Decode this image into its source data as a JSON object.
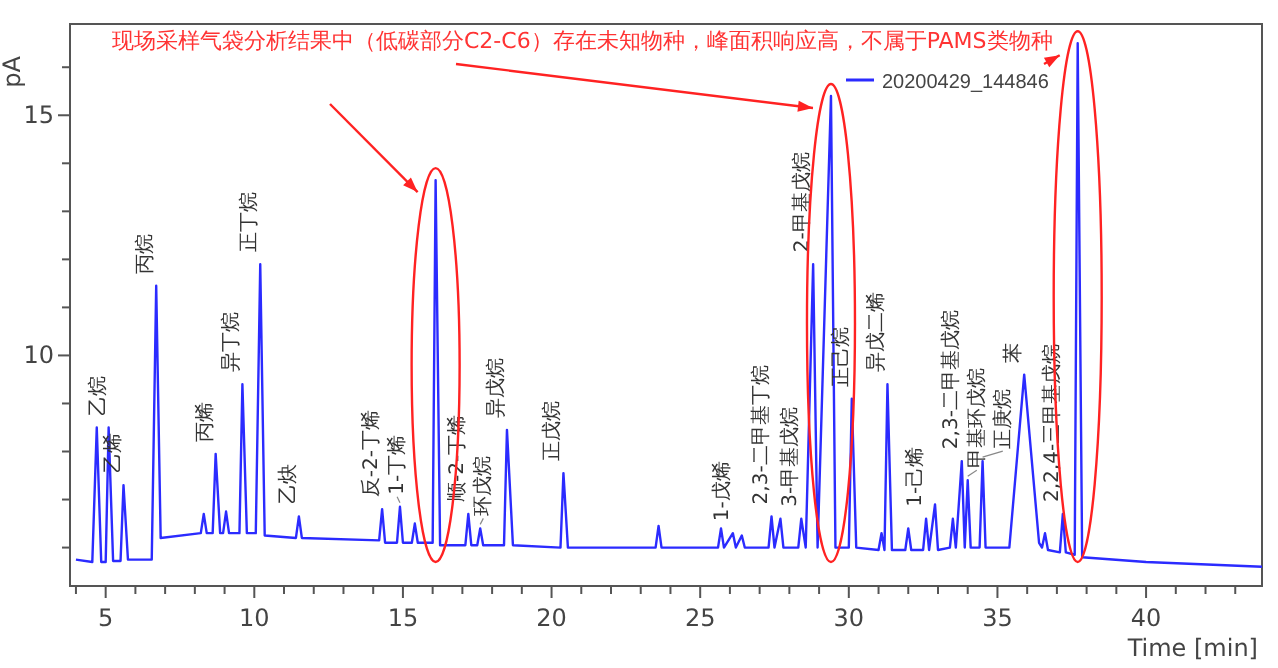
{
  "chart_data": {
    "type": "line",
    "xlabel": "Time [min]",
    "ylabel": "pA",
    "xlim": [
      3.8,
      43.9
    ],
    "ylim": [
      5.2,
      16.9
    ],
    "xticks": [
      {
        "value": 4,
        "label": null
      },
      5,
      {
        "value": 6,
        "label": null
      },
      {
        "value": 7,
        "label": null
      },
      {
        "value": 8,
        "label": null
      },
      {
        "value": 9,
        "label": null
      },
      10,
      {
        "value": 11,
        "label": null
      },
      {
        "value": 12,
        "label": null
      },
      {
        "value": 13,
        "label": null
      },
      {
        "value": 14,
        "label": null
      },
      15,
      {
        "value": 16,
        "label": null
      },
      {
        "value": 17,
        "label": null
      },
      {
        "value": 18,
        "label": null
      },
      {
        "value": 19,
        "label": null
      },
      20,
      {
        "value": 21,
        "label": null
      },
      {
        "value": 22,
        "label": null
      },
      {
        "value": 23,
        "label": null
      },
      {
        "value": 24,
        "label": null
      },
      25,
      {
        "value": 26,
        "label": null
      },
      {
        "value": 27,
        "label": null
      },
      {
        "value": 28,
        "label": null
      },
      {
        "value": 29,
        "label": null
      },
      30,
      {
        "value": 31,
        "label": null
      },
      {
        "value": 32,
        "label": null
      },
      {
        "value": 33,
        "label": null
      },
      {
        "value": 34,
        "label": null
      },
      35,
      {
        "value": 36,
        "label": null
      },
      {
        "value": 37,
        "label": null
      },
      {
        "value": 38,
        "label": null
      },
      {
        "value": 39,
        "label": null
      },
      40,
      {
        "value": 41,
        "label": null
      },
      {
        "value": 42,
        "label": null
      },
      {
        "value": 43,
        "label": null
      }
    ],
    "yticks": [
      {
        "value": 6,
        "label": null
      },
      {
        "value": 7,
        "label": null
      },
      {
        "value": 8,
        "label": null
      },
      {
        "value": 9,
        "label": null
      },
      10,
      {
        "value": 11,
        "label": null
      },
      {
        "value": 12,
        "label": null
      },
      {
        "value": 13,
        "label": null
      },
      {
        "value": 14,
        "label": null
      },
      15,
      {
        "value": 16,
        "label": null
      }
    ],
    "legend": "top right",
    "grid": false,
    "marker": "none",
    "line_style": "solid",
    "series": [
      {
        "name": "20200429_144846",
        "color": "#2b2bff",
        "x": [
          4.0,
          4.55,
          4.7,
          4.85,
          5.0,
          5.1,
          5.25,
          5.5,
          5.6,
          5.75,
          6.55,
          6.7,
          6.85,
          8.2,
          8.3,
          8.4,
          8.6,
          8.7,
          8.85,
          8.95,
          9.05,
          9.15,
          9.5,
          9.6,
          9.75,
          10.05,
          10.2,
          10.35,
          11.4,
          11.5,
          11.6,
          14.2,
          14.3,
          14.4,
          14.8,
          14.9,
          15.0,
          15.3,
          15.4,
          15.5,
          16.0,
          16.1,
          16.25,
          17.1,
          17.2,
          17.3,
          17.5,
          17.6,
          17.7,
          18.4,
          18.5,
          18.7,
          20.3,
          20.4,
          20.55,
          23.5,
          23.6,
          23.7,
          25.6,
          25.7,
          25.8,
          26.1,
          26.2,
          26.4,
          26.5,
          27.3,
          27.4,
          27.5,
          27.7,
          27.8,
          28.3,
          28.4,
          28.55,
          28.8,
          28.95,
          29.4,
          29.55,
          30.0,
          30.1,
          30.25,
          31.0,
          31.1,
          31.2,
          31.3,
          31.45,
          31.9,
          32.0,
          32.1,
          32.5,
          32.6,
          32.7,
          32.9,
          33.0,
          33.4,
          33.5,
          33.6,
          33.8,
          33.9,
          34.0,
          34.1,
          34.4,
          34.5,
          34.6,
          35.4,
          35.9,
          36.4,
          36.5,
          36.6,
          36.7,
          37.1,
          37.2,
          37.3,
          37.6,
          37.7,
          37.85,
          40.0,
          43.9
        ],
        "values": [
          5.75,
          5.7,
          8.5,
          5.7,
          5.7,
          8.5,
          5.72,
          5.72,
          7.3,
          5.75,
          5.75,
          11.45,
          6.2,
          6.3,
          6.7,
          6.3,
          6.3,
          7.95,
          6.3,
          6.3,
          6.75,
          6.3,
          6.3,
          9.4,
          6.3,
          6.3,
          11.9,
          6.25,
          6.2,
          6.65,
          6.2,
          6.15,
          6.8,
          6.1,
          6.1,
          6.85,
          6.1,
          6.1,
          6.5,
          6.1,
          6.1,
          13.65,
          6.05,
          6.05,
          6.7,
          6.05,
          6.05,
          6.4,
          6.05,
          6.05,
          8.45,
          6.05,
          6.0,
          7.55,
          6.0,
          6.0,
          6.45,
          6.0,
          6.0,
          6.4,
          6.0,
          6.3,
          6.0,
          6.25,
          6.0,
          6.0,
          6.65,
          6.0,
          6.6,
          6.0,
          6.0,
          6.6,
          6.0,
          11.9,
          6.0,
          15.4,
          6.0,
          6.0,
          9.1,
          6.0,
          5.95,
          6.3,
          5.95,
          9.4,
          5.95,
          5.95,
          6.4,
          5.95,
          5.95,
          6.6,
          5.95,
          6.9,
          5.95,
          6.0,
          6.6,
          6.0,
          7.8,
          6.0,
          7.4,
          6.0,
          6.0,
          7.8,
          6.0,
          6.0,
          9.6,
          6.1,
          6.0,
          6.3,
          5.95,
          5.9,
          6.7,
          5.9,
          5.85,
          16.5,
          5.8,
          5.7,
          5.6
        ]
      }
    ],
    "annotations": [
      "现场采样气袋分析结果中（低碳部分C2-C6）存在未知物种，峰面积响应高，不属于PAMS类物种",
      {
        "text": "乙烷",
        "x": 5.1,
        "y": 8.5
      },
      {
        "text": "乙烯",
        "x": 5.6,
        "y": 7.3
      },
      {
        "text": "丙烷",
        "x": 6.7,
        "y": 11.45
      },
      {
        "text": "丙烯",
        "x": 8.7,
        "y": 7.95
      },
      {
        "text": "异丁烷",
        "x": 9.6,
        "y": 9.4
      },
      {
        "text": "正丁烷",
        "x": 10.2,
        "y": 11.9
      },
      {
        "text": "乙炔",
        "x": 11.5,
        "y": 6.65
      },
      {
        "text": "反-2-丁烯",
        "x": 14.3,
        "y": 6.8
      },
      {
        "text": "1-丁烯",
        "x": 14.9,
        "y": 6.85
      },
      {
        "text": "顺-2-丁烯",
        "x": 17.2,
        "y": 6.7
      },
      {
        "text": "环戊烷",
        "x": 17.6,
        "y": 6.4
      },
      {
        "text": "异戊烷",
        "x": 18.5,
        "y": 8.45
      },
      {
        "text": "正戊烷",
        "x": 20.4,
        "y": 7.55
      },
      {
        "text": "1-戊烯",
        "x": 26.1,
        "y": 6.3
      },
      {
        "text": "2,3-二甲基丁烷",
        "x": 27.4,
        "y": 6.65
      },
      {
        "text": "3-甲基戊烷",
        "x": 28.4,
        "y": 6.6
      },
      {
        "text": "2-甲基戊烷",
        "x": 28.8,
        "y": 11.9
      },
      {
        "text": "正己烷",
        "x": 30.1,
        "y": 9.1
      },
      {
        "text": "异戊二烯",
        "x": 31.3,
        "y": 9.4
      },
      {
        "text": "1-己烯",
        "x": 32.6,
        "y": 6.6
      },
      {
        "text": "2,3-二甲基戊烷",
        "x": 33.8,
        "y": 7.8
      },
      {
        "text": "甲基环戊烷",
        "x": 34.0,
        "y": 7.4
      },
      {
        "text": "正庚烷",
        "x": 34.5,
        "y": 7.8
      },
      {
        "text": "苯",
        "x": 35.9,
        "y": 9.6
      },
      {
        "text": "2,2,4-三甲基戊烷",
        "x": 37.2,
        "y": 6.7
      }
    ]
  }
}
